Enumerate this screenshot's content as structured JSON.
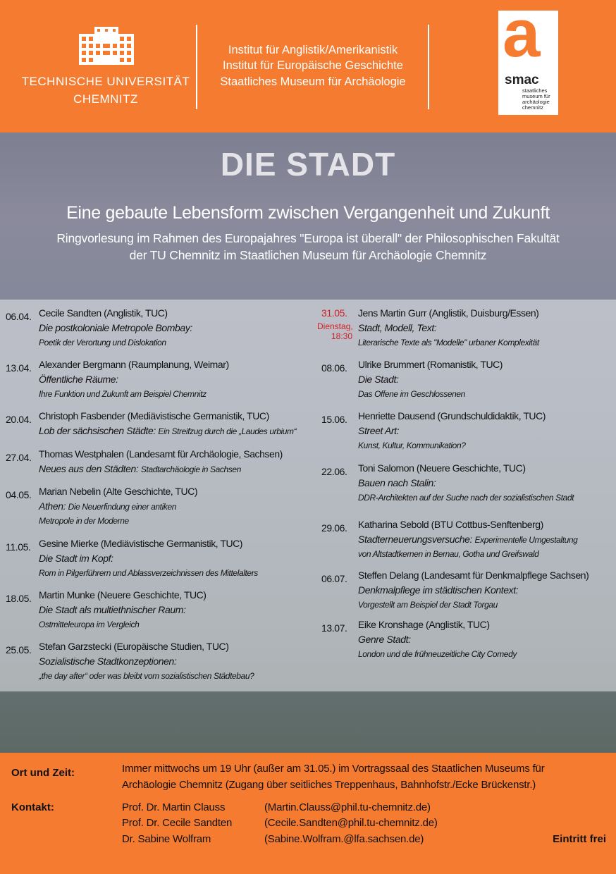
{
  "header": {
    "university": [
      "TECHNISCHE UNIVERSITÄT",
      "CHEMNITZ"
    ],
    "institutes": [
      "Institut für Anglistik/Amerikanistik",
      "Institut für Europäische Geschichte",
      "Staatliches Museum für Archäologie"
    ],
    "logo": {
      "letter": "a",
      "name": "smac",
      "lines": [
        "staatliches",
        "museum für",
        "archäologie",
        "chemnitz"
      ]
    }
  },
  "title": "DIE STADT",
  "subtitle": "Eine gebaute Lebensform zwischen Vergangenheit und Zukunft",
  "description": [
    "Ringvorlesung im Rahmen des Europajahres \"Europa ist überall\" der Philosophischen Fakultät",
    "der TU Chemnitz im Staatlichen Museum für Archäologie Chemnitz"
  ],
  "lectures": [
    [
      {
        "date": "06.04.",
        "speaker": "Cecile Sandten (Anglistik, TUC)",
        "lines": [
          {
            "main": "Die postkoloniale Metropole Bombay:"
          },
          {
            "sub": "Poetik der Verortung und Dislokation"
          }
        ]
      },
      {
        "date": "13.04.",
        "speaker": "Alexander Bergmann (Raumplanung, Weimar)",
        "lines": [
          {
            "main": "Öffentliche Räume:"
          },
          {
            "sub": "Ihre Funktion und Zukunft am Beispiel Chemnitz"
          }
        ]
      },
      {
        "date": "20.04.",
        "speaker": "Christoph Fasbender (Mediävistische Germanistik, TUC)",
        "lines": [
          {
            "main": "Lob der sächsischen Städte:",
            "sub": "Ein Streifzug durch die „Laudes urbium“"
          }
        ]
      },
      {
        "date": "27.04.",
        "speaker": "Thomas Westphalen (Landesamt für Archäologie, Sachsen)",
        "lines": [
          {
            "main": "Neues aus den Städten:",
            "sub": "Stadtarchäologie in Sachsen"
          }
        ]
      },
      {
        "date": "04.05.",
        "speaker": "Marian Nebelin (Alte Geschichte, TUC)",
        "lines": [
          {
            "main": "Athen:",
            "sub": "Die Neuerfindung einer antiken"
          },
          {
            "sub": "Metropole in der Moderne"
          }
        ]
      },
      {
        "date": "11.05.",
        "speaker": "Gesine Mierke (Mediävistische Germanistik, TUC)",
        "lines": [
          {
            "main": "Die Stadt im Kopf:"
          },
          {
            "sub": "Rom in Pilgerführern und Ablassverzeichnissen des Mittelalters"
          }
        ]
      },
      {
        "date": "18.05.",
        "speaker": "Martin Munke (Neuere Geschichte, TUC)",
        "lines": [
          {
            "main": "Die Stadt als multiethnischer Raum:"
          },
          {
            "sub": "Ostmitteleuropa im Vergleich"
          }
        ]
      },
      {
        "date": "25.05.",
        "speaker": "Stefan Garzstecki (Europäische Studien, TUC)",
        "lines": [
          {
            "main": "Sozialistische Stadtkonzeptionen:"
          },
          {
            "sub": "„the day after“ oder was bleibt vom sozialistischen Städtebau?"
          }
        ]
      }
    ],
    [
      {
        "date": "31.05.",
        "note": [
          "Dienstag,",
          "18:30"
        ],
        "speaker": "Jens Martin Gurr (Anglistik, Duisburg/Essen)",
        "lines": [
          {
            "main": "Stadt, Modell, Text:"
          },
          {
            "sub": "Literarische Texte als \"Modelle\" urbaner Komplexität"
          }
        ]
      },
      {
        "date": "08.06.",
        "speaker": "Ulrike Brummert (Romanistik, TUC)",
        "lines": [
          {
            "main": "Die Stadt:"
          },
          {
            "sub": "Das Offene im Geschlossenen"
          }
        ]
      },
      {
        "date": "15.06.",
        "speaker": "Henriette Dausend  (Grundschuldidaktik, TUC)",
        "lines": [
          {
            "main": "Street Art:"
          },
          {
            "sub": "Kunst, Kultur, Kommunikation?"
          }
        ]
      },
      {
        "date": "22.06.",
        "speaker": "Toni Salomon (Neuere Geschichte, TUC)",
        "lines": [
          {
            "main": "Bauen nach Stalin:"
          },
          {
            "sub": "DDR-Architekten auf der Suche nach der sozialistischen Stadt"
          }
        ]
      },
      {
        "date": "29.06.",
        "speaker": "Katharina Sebold (BTU Cottbus-Senftenberg)",
        "lines": [
          {
            "main": "Stadterneuerungsversuche:",
            "sub": "Experimentelle Umgestaltung"
          },
          {
            "sub": "von Altstadtkernen in Bernau, Gotha und Greifswald"
          }
        ]
      },
      {
        "date": "06.07.",
        "speaker": "Steffen Delang (Landesamt für Denkmalpflege Sachsen)",
        "lines": [
          {
            "main": "Denkmalpflege im städtischen Kontext:"
          },
          {
            "sub": "Vorgestellt am Beispiel der Stadt Torgau"
          }
        ]
      },
      {
        "date": "13.07.",
        "speaker": "Eike Kronshage (Anglistik, TUC)",
        "lines": [
          {
            "main": "Genre Stadt:"
          },
          {
            "sub": "London und die frühneuzeitliche City Comedy"
          }
        ]
      }
    ]
  ],
  "footer": {
    "place_label": "Ort und Zeit:",
    "place_text": [
      "Immer mittwochs um 19 Uhr (außer am 31.05.) im Vortragssaal des Staatlichen Museums für",
      "Archäologie Chemnitz (Zugang über seitliches Treppenhaus, Bahnhofstr./Ecke Brückenstr.)"
    ],
    "contact_label": "Kontakt:",
    "contacts": [
      {
        "name": "Prof. Dr. Martin Clauss",
        "email": "(Martin.Clauss@phil.tu-chemnitz.de)"
      },
      {
        "name": "Prof. Dr. Cecile Sandten",
        "email": "(Cecile.Sandten@phil.tu-chemnitz.de)"
      },
      {
        "name": "Dr. Sabine Wolfram",
        "email": "(Sabine.Wolfram.@lfa.sachsen.de)"
      }
    ],
    "admission": "Eintritt frei"
  }
}
